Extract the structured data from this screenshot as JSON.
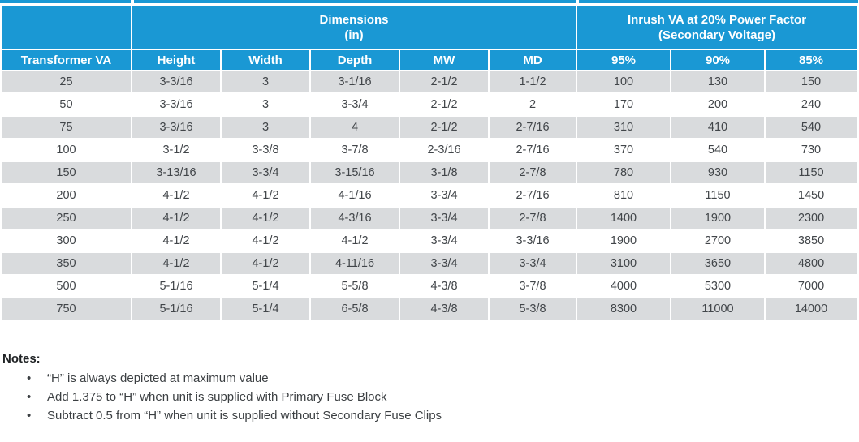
{
  "colors": {
    "header_blue": "#1a98d4",
    "row_gray": "#d9dbdd",
    "body_text": "#414549",
    "header_text": "#ffffff"
  },
  "table": {
    "group_headers": [
      {
        "label": "",
        "span": 1
      },
      {
        "label": "Dimensions\n(in)",
        "span": 5
      },
      {
        "label": "Inrush VA at 20% Power Factor\n(Secondary Voltage)",
        "span": 3
      }
    ],
    "columns": [
      "Transformer VA",
      "Height",
      "Width",
      "Depth",
      "MW",
      "MD",
      "95%",
      "90%",
      "85%"
    ],
    "rows": [
      [
        "25",
        "3-3/16",
        "3",
        "3-1/16",
        "2-1/2",
        "1-1/2",
        "100",
        "130",
        "150"
      ],
      [
        "50",
        "3-3/16",
        "3",
        "3-3/4",
        "2-1/2",
        "2",
        "170",
        "200",
        "240"
      ],
      [
        "75",
        "3-3/16",
        "3",
        "4",
        "2-1/2",
        "2-7/16",
        "310",
        "410",
        "540"
      ],
      [
        "100",
        "3-1/2",
        "3-3/8",
        "3-7/8",
        "2-3/16",
        "2-7/16",
        "370",
        "540",
        "730"
      ],
      [
        "150",
        "3-13/16",
        "3-3/4",
        "3-15/16",
        "3-1/8",
        "2-7/8",
        "780",
        "930",
        "1150"
      ],
      [
        "200",
        "4-1/2",
        "4-1/2",
        "4-1/16",
        "3-3/4",
        "2-7/16",
        "810",
        "1150",
        "1450"
      ],
      [
        "250",
        "4-1/2",
        "4-1/2",
        "4-3/16",
        "3-3/4",
        "2-7/8",
        "1400",
        "1900",
        "2300"
      ],
      [
        "300",
        "4-1/2",
        "4-1/2",
        "4-1/2",
        "3-3/4",
        "3-3/16",
        "1900",
        "2700",
        "3850"
      ],
      [
        "350",
        "4-1/2",
        "4-1/2",
        "4-11/16",
        "3-3/4",
        "3-3/4",
        "3100",
        "3650",
        "4800"
      ],
      [
        "500",
        "5-1/16",
        "5-1/4",
        "5-5/8",
        "4-3/8",
        "3-7/8",
        "4000",
        "5300",
        "7000"
      ],
      [
        "750",
        "5-1/16",
        "5-1/4",
        "6-5/8",
        "4-3/8",
        "5-3/8",
        "8300",
        "11000",
        "14000"
      ]
    ]
  },
  "notes": {
    "title": "Notes:",
    "items": [
      "“H” is always depicted at maximum value",
      "Add 1.375 to “H” when unit is supplied with Primary Fuse Block",
      "Subtract 0.5 from “H” when unit is supplied without Secondary Fuse Clips"
    ]
  }
}
